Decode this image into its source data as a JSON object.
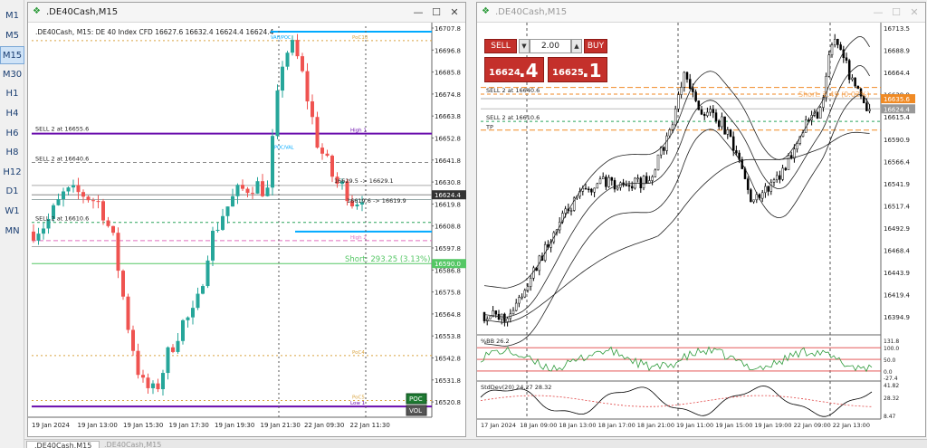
{
  "timeframes": [
    "M1",
    "M5",
    "M15",
    "M30",
    "H1",
    "H4",
    "H6",
    "H8",
    "H12",
    "D1",
    "W1",
    "MN"
  ],
  "active_timeframe": "M15",
  "left_window": {
    "title": ".DE40Cash,M15",
    "header": ".DE40Cash, M15:  DE 40 Index CFD   16627.6 16632.4 16624.4 16624.4",
    "price_labels": [
      "16707.8",
      "16696.8",
      "16685.8",
      "16674.8",
      "16663.8",
      "16652.8",
      "16641.8",
      "16630.8",
      "16619.8",
      "16608.8",
      "16597.8",
      "16586.8",
      "16575.8",
      "16564.8",
      "16553.8",
      "16542.8",
      "16531.8",
      "16520.8"
    ],
    "current_price": "16624.4",
    "level_price": "16590.0",
    "time_labels": [
      "19 Jan 2024",
      "19 Jan 13:00",
      "19 Jan 15:30",
      "19 Jan 17:30",
      "19 Jan 19:30",
      "19 Jan 21:30",
      "22 Jan 09:30",
      "22 Jan 11:30"
    ],
    "annotations": {
      "sell1": "SELL 2 at 16655.6",
      "sell2": "SELL 2 at 16640.6",
      "sell3": "SELL 2 at 16610.6",
      "move1": "16629.5 -> 16629.1",
      "move2": "16619.6 -> 16619.9",
      "short": "Short: 293.25  (3.13%)",
      "poc10": "PoC10",
      "poc4": "PoC4",
      "poc5": "PoC5",
      "high1": "High 1",
      "high2": "High 2",
      "low1": "Low 1",
      "vah": "VAH/POC",
      "val": "POC/VAL"
    },
    "buttons": {
      "poc": "POC",
      "vol": "VOL"
    }
  },
  "right_window": {
    "title": ".DE40Cash,M15",
    "trade_panel": {
      "sell_label": "SELL",
      "buy_label": "BUY",
      "lot": "2.00",
      "sell_small": "16624",
      "sell_big": ".4",
      "buy_small": "16625",
      "buy_big": ".1"
    },
    "price_labels": [
      "16713.5",
      "16688.9",
      "16664.4",
      "16639.9",
      "16615.4",
      "16590.9",
      "16566.4",
      "16541.9",
      "16517.4",
      "16492.9",
      "16468.4",
      "16443.9",
      "16419.4",
      "16394.9"
    ],
    "current_price_labels": [
      "16635.6",
      "16624.4"
    ],
    "annotations": {
      "sell1": "SELL 2 at 16640.6",
      "sell2": "SELL 2 at 16610.6",
      "tp": "TP",
      "short_partial": "Short: 2.49  (0.02%)"
    },
    "indicator1_label": "%BB 26.2",
    "indicator1_levels": [
      "131.8",
      "100.0",
      "50.0",
      "0.0",
      "-27.4"
    ],
    "indicator2_label": "StdDev(20) 24.27 28.32",
    "indicator2_levels": [
      "41.82",
      "28.32",
      "8.47"
    ],
    "time_labels": [
      "17 Jan 2024",
      "18 Jan 09:00",
      "18 Jan 13:00",
      "18 Jan 17:00",
      "18 Jan 21:00",
      "19 Jan 11:00",
      "19 Jan 15:00",
      "19 Jan 19:00",
      "22 Jan 09:00",
      "22 Jan 13:00"
    ]
  },
  "tabs": [
    ".DE40Cash,M15",
    ".DE40Cash,M15"
  ]
}
